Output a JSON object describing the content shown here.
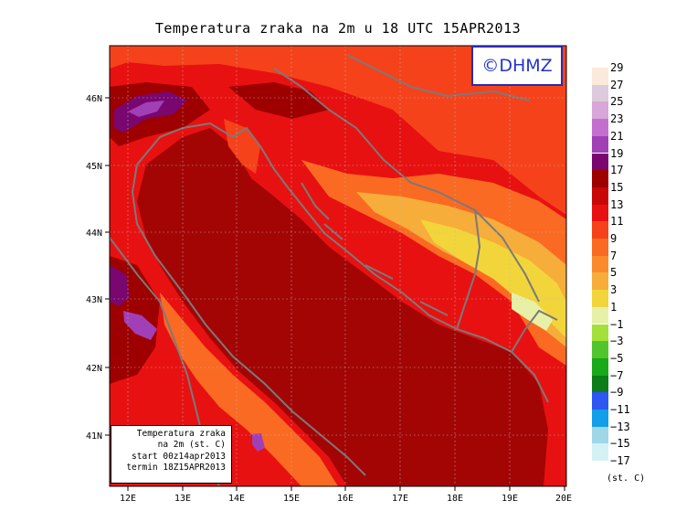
{
  "title": "Temperatura zraka na 2m u 18 UTC 15APR2013",
  "logo_text": "©DHMZ",
  "lat_ticks": [
    "46N",
    "45N",
    "44N",
    "43N",
    "42N",
    "41N"
  ],
  "lon_ticks": [
    "12E",
    "13E",
    "14E",
    "15E",
    "16E",
    "17E",
    "18E",
    "19E",
    "20E"
  ],
  "legend": {
    "unit": "(st. C)",
    "levels": [
      {
        "label": "29",
        "color": "#fbe9dc"
      },
      {
        "label": "27",
        "color": "#dccbdc"
      },
      {
        "label": "25",
        "color": "#d8a6d8"
      },
      {
        "label": "23",
        "color": "#c46fcf"
      },
      {
        "label": "21",
        "color": "#a13fb6"
      },
      {
        "label": "19",
        "color": "#7a0670"
      },
      {
        "label": "17",
        "color": "#9e0000"
      },
      {
        "label": "15",
        "color": "#c80707"
      },
      {
        "label": "13",
        "color": "#e81111"
      },
      {
        "label": "11",
        "color": "#f5421b"
      },
      {
        "label": "9",
        "color": "#fa6a22"
      },
      {
        "label": "7",
        "color": "#fb8a2c"
      },
      {
        "label": "5",
        "color": "#f6ad3a"
      },
      {
        "label": "3",
        "color": "#f2d53a"
      },
      {
        "label": "1",
        "color": "#e8f0a8"
      },
      {
        "label": "−1",
        "color": "#a4e03a"
      },
      {
        "label": "−3",
        "color": "#51c62c"
      },
      {
        "label": "−5",
        "color": "#18aa18"
      },
      {
        "label": "−7",
        "color": "#0c7d18"
      },
      {
        "label": "−9",
        "color": "#2d57f0"
      },
      {
        "label": "−11",
        "color": "#129ee8"
      },
      {
        "label": "−13",
        "color": "#9fd6e8"
      },
      {
        "label": "−15",
        "color": "#d4f2f6"
      },
      {
        "label": "−17",
        "color": "#ffffff"
      }
    ]
  },
  "info": {
    "line1": "Temperatura zraka",
    "line2": "na 2m (st. C)",
    "line3": "start 00z14apr2013",
    "line4": "termin 18Z15APR2013"
  },
  "colors": {
    "sea": "#a30505",
    "land_warm": "#e81111",
    "land_mild": "#f5421b",
    "coast_band": "#fa6a22",
    "inland_cool": "#f6ad3a",
    "mountain": "#f2d53a",
    "peak": "#e8f0a8",
    "hot_spot": "#7a0670",
    "border": "#7a7a7a"
  }
}
